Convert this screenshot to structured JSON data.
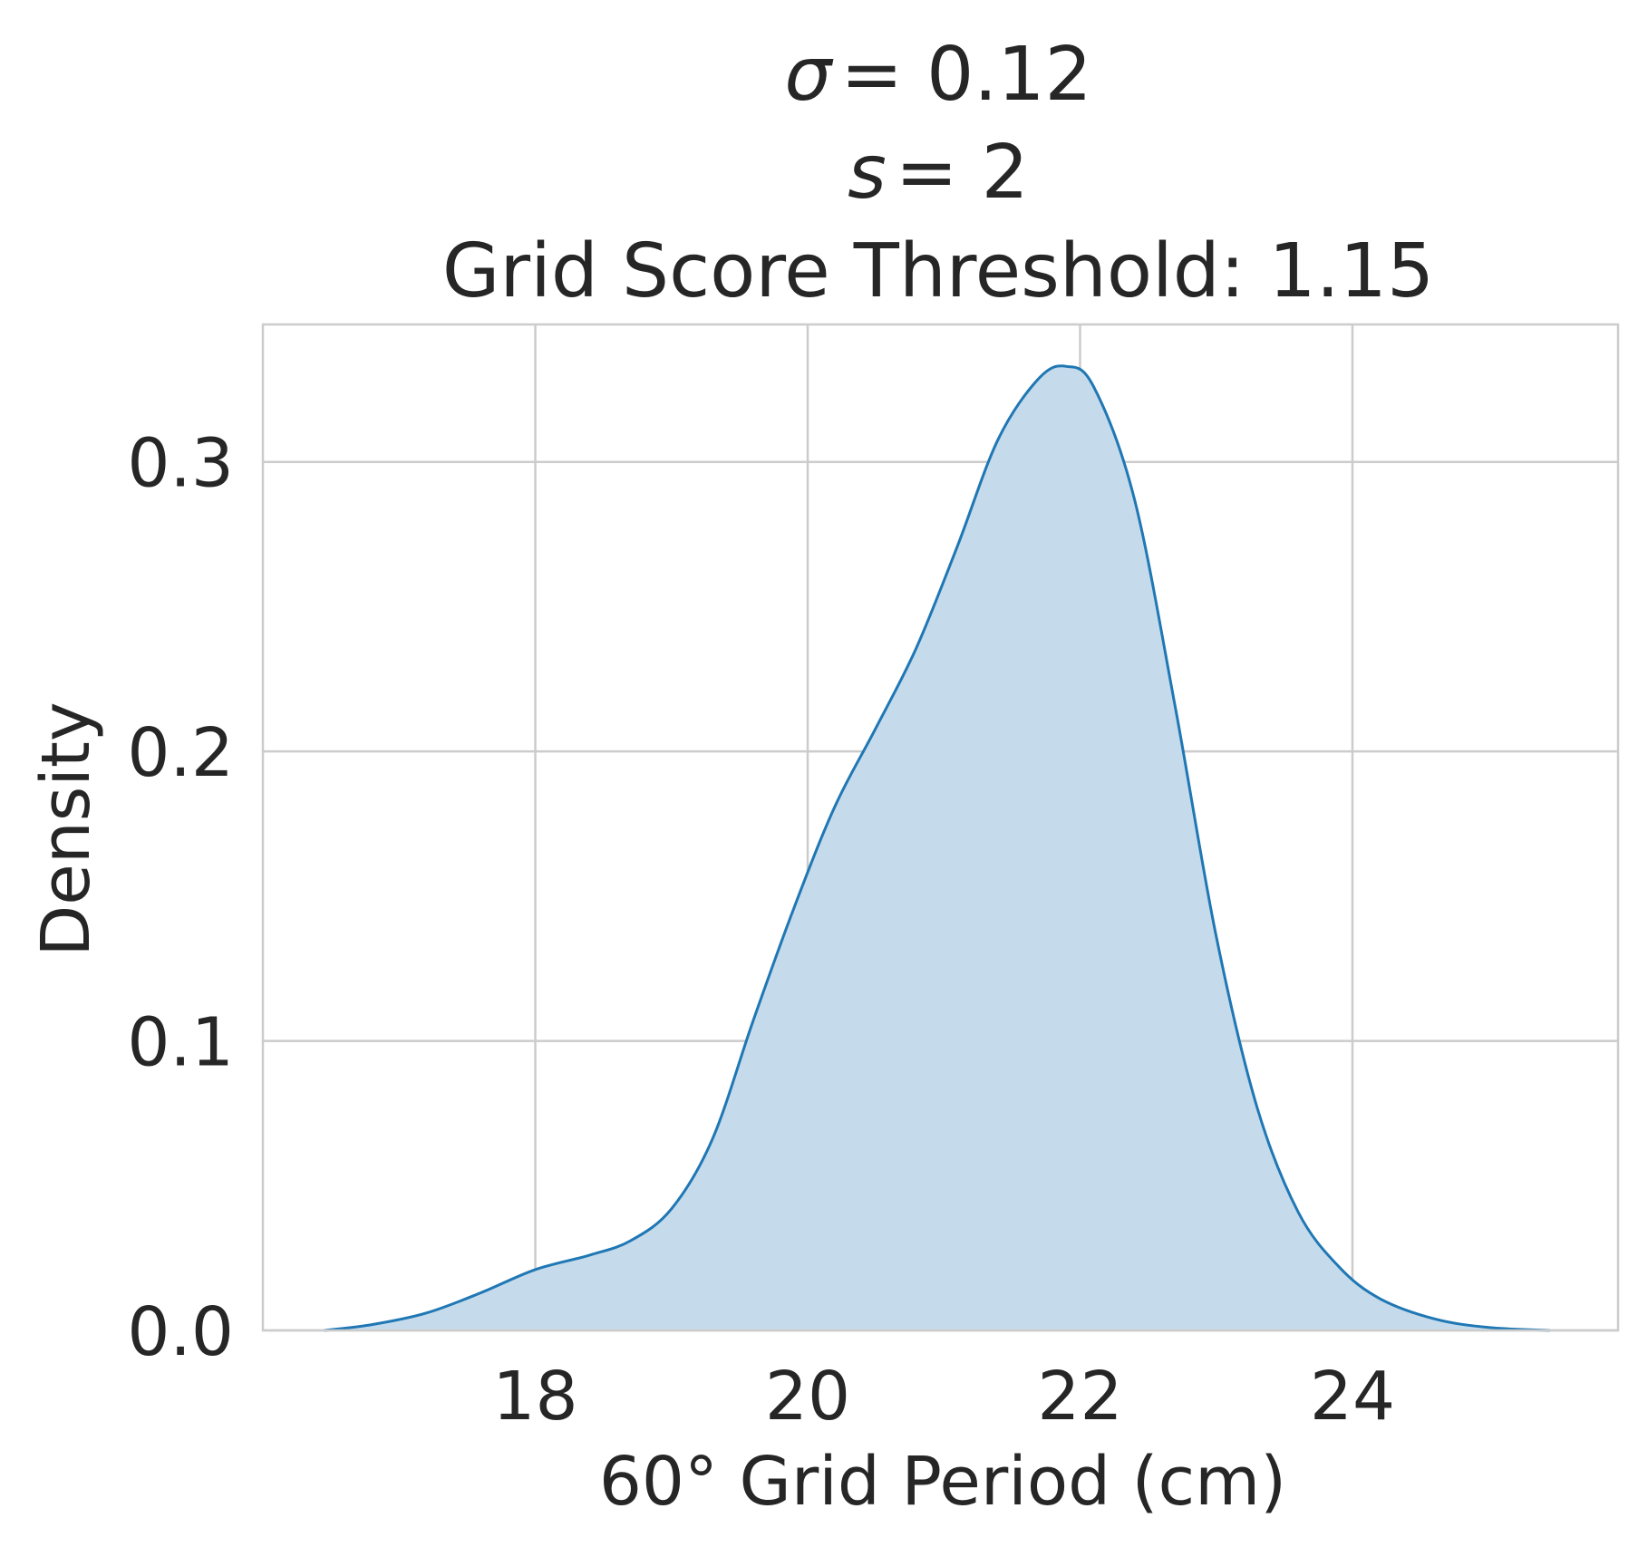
{
  "chart_data": {
    "type": "area",
    "title_lines": [
      "σ = 0.12",
      "s = 2",
      "Grid Score Threshold: 1.15"
    ],
    "xlabel": "60° Grid Period (cm)",
    "ylabel": "Density",
    "xlim": [
      16.0,
      25.95
    ],
    "ylim": [
      0.0,
      0.3475
    ],
    "xticks": [
      18,
      20,
      22,
      24
    ],
    "xtick_labels": [
      "18",
      "20",
      "22",
      "24"
    ],
    "yticks": [
      0.0,
      0.1,
      0.2,
      0.3
    ],
    "ytick_labels": [
      "0.0",
      "0.1",
      "0.2",
      "0.3"
    ],
    "grid": true,
    "legend": "none",
    "series": [
      {
        "color": "#1f77b4",
        "fill_color": "#c5dbec",
        "x": [
          16.45,
          16.8,
          17.2,
          17.6,
          18.0,
          18.4,
          18.7,
          19.0,
          19.3,
          19.6,
          19.9,
          20.2,
          20.5,
          20.8,
          21.1,
          21.4,
          21.7,
          21.9,
          22.1,
          22.4,
          22.7,
          23.0,
          23.3,
          23.6,
          23.9,
          24.2,
          24.6,
          25.0,
          25.45
        ],
        "y": [
          0.0,
          0.002,
          0.006,
          0.013,
          0.021,
          0.026,
          0.031,
          0.042,
          0.066,
          0.107,
          0.146,
          0.181,
          0.208,
          0.236,
          0.271,
          0.308,
          0.329,
          0.333,
          0.326,
          0.287,
          0.215,
          0.136,
          0.077,
          0.041,
          0.022,
          0.011,
          0.004,
          0.001,
          0.0
        ]
      }
    ]
  }
}
